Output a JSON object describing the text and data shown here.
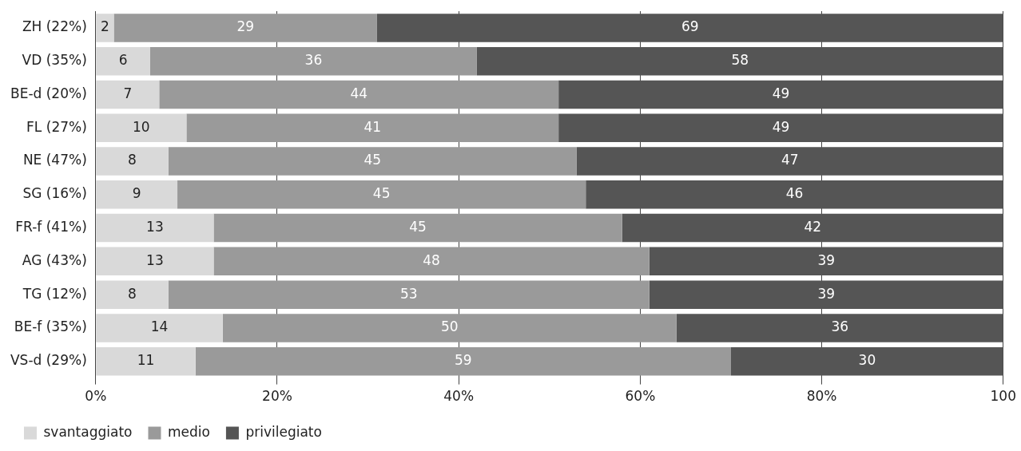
{
  "chart_data": {
    "type": "bar",
    "orientation": "horizontal",
    "stacked": true,
    "categories": [
      "ZH (22%)",
      "VD (35%)",
      "BE-d (20%)",
      "FL (27%)",
      "NE (47%)",
      "SG (16%)",
      "FR-f (41%)",
      "AG (43%)",
      "TG (12%)",
      "BE-f (35%)",
      "VS-d (29%)"
    ],
    "series": [
      {
        "name": "svantaggiato",
        "color": "#d9d9d9",
        "values": [
          2,
          6,
          7,
          10,
          8,
          9,
          13,
          13,
          8,
          14,
          11
        ]
      },
      {
        "name": "medio",
        "color": "#9a9a9a",
        "values": [
          29,
          36,
          44,
          41,
          45,
          45,
          45,
          48,
          53,
          50,
          59
        ]
      },
      {
        "name": "privilegiato",
        "color": "#555555",
        "values": [
          69,
          58,
          49,
          49,
          47,
          46,
          42,
          39,
          39,
          36,
          30
        ]
      }
    ],
    "xlim": [
      0,
      100
    ],
    "xticks": [
      {
        "value": 0,
        "label": "0%"
      },
      {
        "value": 20,
        "label": "20%"
      },
      {
        "value": 40,
        "label": "40%"
      },
      {
        "value": 60,
        "label": "60%"
      },
      {
        "value": 80,
        "label": "80%"
      },
      {
        "value": 100,
        "label": "100"
      }
    ],
    "grid": "x",
    "legend": "bottom left",
    "data_labels": true
  }
}
